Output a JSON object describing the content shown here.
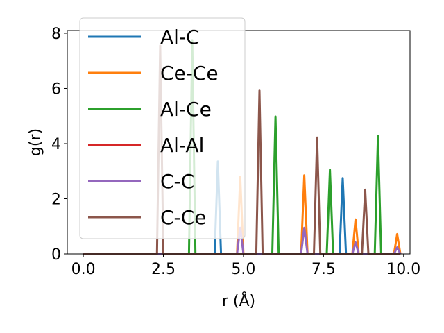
{
  "chart_data": {
    "type": "line",
    "xlabel": "r (Å)",
    "ylabel": "g(r)",
    "xlim": [
      -0.5,
      10.2
    ],
    "ylim": [
      0,
      8.1
    ],
    "x_ticks": [
      0.0,
      2.5,
      5.0,
      7.5,
      10.0
    ],
    "x_tick_labels": [
      "0.0",
      "2.5",
      "5.0",
      "7.5",
      "10.0"
    ],
    "y_ticks": [
      0,
      2,
      4,
      6,
      8
    ],
    "y_tick_labels": [
      "0",
      "2",
      "4",
      "6",
      "8"
    ],
    "grid": false,
    "legend_position": "upper-left",
    "peak_half_width": 0.1,
    "series": [
      {
        "name": "Al-C",
        "color": "#1f77b4",
        "peaks": [
          {
            "x": 4.2,
            "y": 3.35
          },
          {
            "x": 8.1,
            "y": 2.75
          }
        ]
      },
      {
        "name": "Ce-Ce",
        "color": "#ff7f0e",
        "peaks": [
          {
            "x": 4.9,
            "y": 2.8
          },
          {
            "x": 6.9,
            "y": 2.85
          },
          {
            "x": 8.5,
            "y": 1.25
          },
          {
            "x": 9.8,
            "y": 0.72
          }
        ]
      },
      {
        "name": "Al-Ce",
        "color": "#2ca02c",
        "peaks": [
          {
            "x": 3.4,
            "y": 7.75
          },
          {
            "x": 6.0,
            "y": 4.98
          },
          {
            "x": 7.7,
            "y": 3.05
          },
          {
            "x": 9.2,
            "y": 4.28
          }
        ]
      },
      {
        "name": "Al-Al",
        "color": "#d62728",
        "peaks": []
      },
      {
        "name": "C-C",
        "color": "#9467bd",
        "peaks": [
          {
            "x": 4.9,
            "y": 0.95
          },
          {
            "x": 6.9,
            "y": 0.95
          },
          {
            "x": 8.5,
            "y": 0.42
          },
          {
            "x": 9.8,
            "y": 0.24
          }
        ]
      },
      {
        "name": "C-Ce",
        "color": "#8c564b",
        "peaks": [
          {
            "x": 2.4,
            "y": 7.55
          },
          {
            "x": 5.5,
            "y": 5.92
          },
          {
            "x": 7.3,
            "y": 4.22
          },
          {
            "x": 8.8,
            "y": 2.33
          }
        ]
      }
    ]
  }
}
